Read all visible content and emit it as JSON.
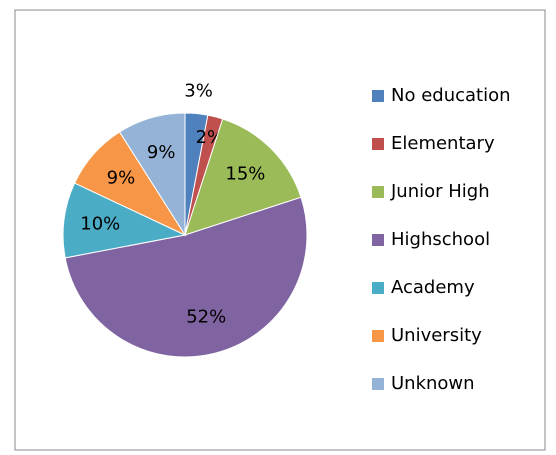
{
  "chart_data": {
    "type": "pie",
    "categories": [
      "No education",
      "Elementary",
      "Junior High",
      "Highschool",
      "Academy",
      "University",
      "Unknown"
    ],
    "values": [
      3,
      2,
      15,
      52,
      10,
      9,
      9
    ],
    "value_labels": [
      "3%",
      "2%",
      "15%",
      "52%",
      "10%",
      "9%",
      "9%"
    ],
    "colors": [
      "#4f81bd",
      "#c0504d",
      "#9bbb59",
      "#8064a2",
      "#4bacc6",
      "#f79646",
      "#95b3d7"
    ],
    "legend": "right"
  }
}
